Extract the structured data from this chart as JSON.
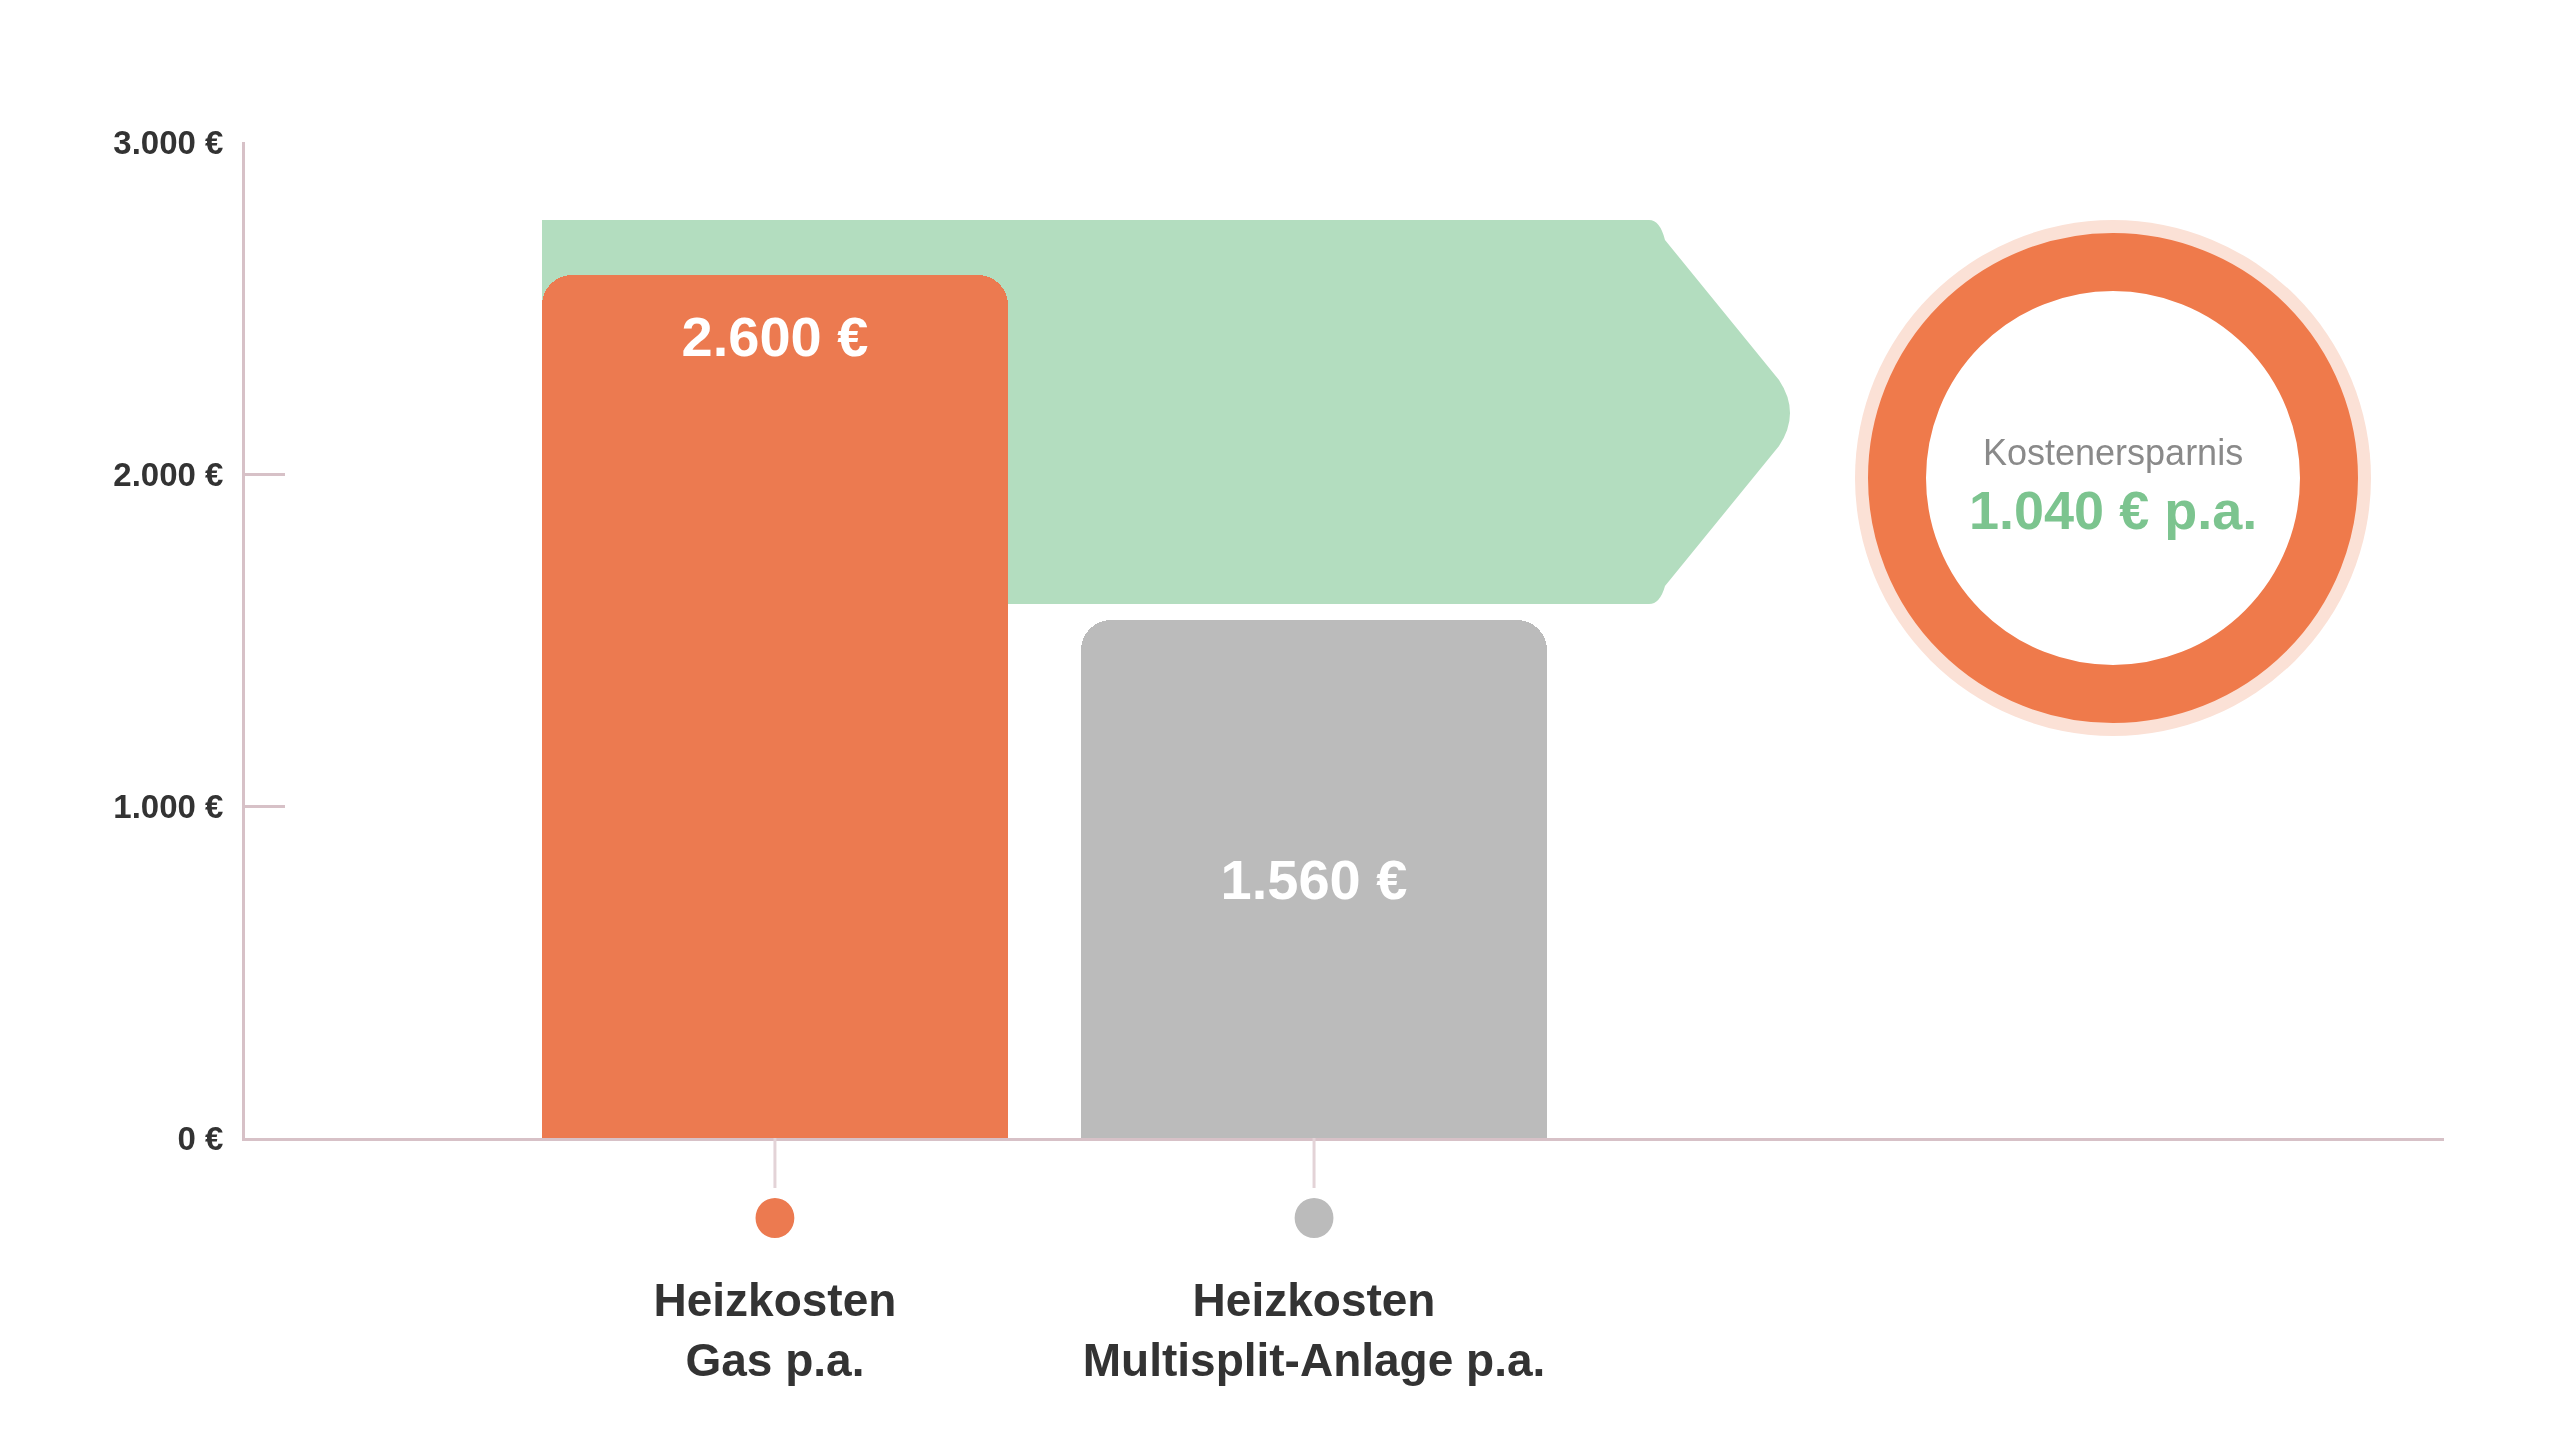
{
  "chart_data": {
    "type": "bar",
    "categories": [
      "Heizkosten\nGas p.a.",
      "Heizkosten\nMultisplit-Anlage p.a."
    ],
    "values": [
      2600,
      1560
    ],
    "colors": [
      "#ec7a50",
      "#bbbbbb"
    ],
    "value_labels": [
      "2.600 €",
      "1.560 €"
    ],
    "ylim": [
      0,
      3000
    ],
    "yticks": [
      {
        "value": 0,
        "label": "0 €"
      },
      {
        "value": 1000,
        "label": "1.000 €"
      },
      {
        "value": 2000,
        "label": "2.000 €"
      },
      {
        "value": 3000,
        "label": "3.000 €"
      }
    ],
    "grid": false,
    "legend": false,
    "annotations": [
      "Kostenersparnis",
      "1.040 € p.a."
    ]
  }
}
